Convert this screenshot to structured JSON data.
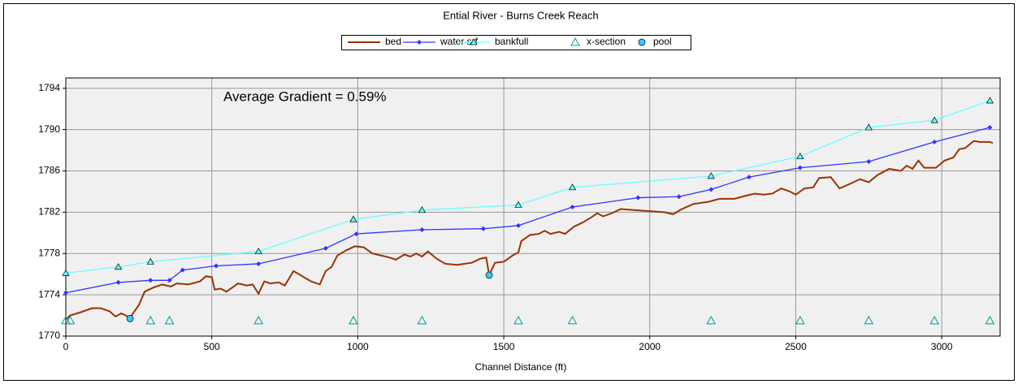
{
  "chart_data": {
    "type": "line",
    "title": "Ential River - Burns Creek Reach",
    "x_label": "Channel Distance (ft)",
    "annotation": "Average Gradient = 0.59%",
    "xlim": [
      0,
      3200
    ],
    "ylim": [
      1770,
      1795
    ],
    "xticks": [
      0,
      500,
      1000,
      1500,
      2000,
      2500,
      3000
    ],
    "yticks": [
      1770,
      1774,
      1778,
      1782,
      1786,
      1790,
      1794
    ],
    "grid": true,
    "series": [
      {
        "name": "bed",
        "color": "#993300",
        "line": true,
        "marker": "none",
        "x": [
          0,
          15,
          50,
          90,
          120,
          150,
          170,
          190,
          220,
          250,
          270,
          300,
          330,
          360,
          380,
          420,
          460,
          480,
          500,
          510,
          530,
          550,
          590,
          620,
          640,
          660,
          680,
          700,
          730,
          750,
          780,
          810,
          840,
          870,
          890,
          910,
          930,
          960,
          990,
          1020,
          1050,
          1080,
          1110,
          1130,
          1160,
          1180,
          1200,
          1220,
          1240,
          1270,
          1300,
          1340,
          1390,
          1420,
          1440,
          1450,
          1470,
          1500,
          1530,
          1550,
          1560,
          1590,
          1620,
          1640,
          1660,
          1690,
          1710,
          1740,
          1770,
          1800,
          1820,
          1840,
          1870,
          1900,
          1950,
          2000,
          2050,
          2080,
          2110,
          2150,
          2200,
          2240,
          2290,
          2330,
          2360,
          2390,
          2420,
          2450,
          2480,
          2500,
          2530,
          2560,
          2580,
          2620,
          2650,
          2690,
          2720,
          2750,
          2780,
          2820,
          2860,
          2880,
          2900,
          2920,
          2940,
          2980,
          3010,
          3040,
          3060,
          3080,
          3110,
          3130,
          3165,
          3175
        ],
        "values": [
          1771.6,
          1772,
          1772.3,
          1772.7,
          1772.7,
          1772.4,
          1771.9,
          1772.2,
          1771.8,
          1773,
          1774.3,
          1774.7,
          1775,
          1774.8,
          1775.1,
          1775,
          1775.3,
          1775.8,
          1775.7,
          1774.5,
          1774.6,
          1774.3,
          1775.1,
          1774.9,
          1775,
          1774.1,
          1775.3,
          1775.1,
          1775.2,
          1774.9,
          1776.3,
          1775.8,
          1775.3,
          1775,
          1776.3,
          1776.7,
          1777.8,
          1778.3,
          1778.7,
          1778.6,
          1778,
          1777.8,
          1777.6,
          1777.4,
          1777.9,
          1777.7,
          1778,
          1777.7,
          1778.2,
          1777.5,
          1777,
          1776.9,
          1777.1,
          1777.5,
          1777.6,
          1775.9,
          1777.1,
          1777.2,
          1777.8,
          1778.1,
          1779.2,
          1779.8,
          1779.9,
          1780.2,
          1779.9,
          1780.1,
          1779.9,
          1780.6,
          1781,
          1781.5,
          1781.9,
          1781.6,
          1781.9,
          1782.3,
          1782.2,
          1782.1,
          1782,
          1781.8,
          1782.3,
          1782.8,
          1783,
          1783.3,
          1783.3,
          1783.6,
          1783.8,
          1783.7,
          1783.8,
          1784.3,
          1784,
          1783.7,
          1784.3,
          1784.4,
          1785.3,
          1785.4,
          1784.3,
          1784.8,
          1785.2,
          1784.9,
          1785.6,
          1786.2,
          1786,
          1786.5,
          1786.2,
          1787,
          1786.3,
          1786.3,
          1787,
          1787.3,
          1788.1,
          1788.2,
          1788.9,
          1788.8,
          1788.8,
          1788.7
        ]
      },
      {
        "name": "water srf",
        "color": "#3333ff",
        "line": true,
        "marker": "diamond",
        "x": [
          0,
          180,
          290,
          355,
          400,
          515,
          660,
          890,
          995,
          1220,
          1430,
          1550,
          1735,
          1960,
          2100,
          2210,
          2340,
          2515,
          2750,
          2975,
          3165
        ],
        "values": [
          1774.2,
          1775.2,
          1775.4,
          1775.4,
          1776.4,
          1776.8,
          1777,
          1778.5,
          1779.9,
          1780.3,
          1780.4,
          1780.7,
          1782.5,
          1783.4,
          1783.5,
          1784.2,
          1785.4,
          1786.3,
          1786.9,
          1788.8,
          1790.2
        ]
      },
      {
        "name": "bankfull",
        "color": "#66ffff",
        "line": true,
        "marker": "triangle",
        "x": [
          0,
          180,
          290,
          660,
          985,
          1220,
          1550,
          1735,
          2210,
          2515,
          2750,
          2975,
          3165
        ],
        "values": [
          1776.1,
          1776.7,
          1777.2,
          1778.2,
          1781.3,
          1782.2,
          1782.7,
          1784.4,
          1785.5,
          1787.4,
          1790.2,
          1790.9,
          1792.8
        ]
      },
      {
        "name": "x-section",
        "color": "#009999",
        "line": false,
        "marker": "triangle-open",
        "x": [
          0,
          15,
          290,
          355,
          660,
          985,
          1220,
          1550,
          1735,
          2210,
          2515,
          2750,
          2975,
          3165
        ],
        "values": [
          1771.5,
          1771.5,
          1771.5,
          1771.5,
          1771.5,
          1771.5,
          1771.5,
          1771.5,
          1771.5,
          1771.5,
          1771.5,
          1771.5,
          1771.5,
          1771.5
        ]
      },
      {
        "name": "pool",
        "color": "#33ccff",
        "line": false,
        "marker": "circle",
        "x": [
          220,
          1450
        ],
        "values": [
          1771.7,
          1775.9
        ]
      }
    ]
  }
}
